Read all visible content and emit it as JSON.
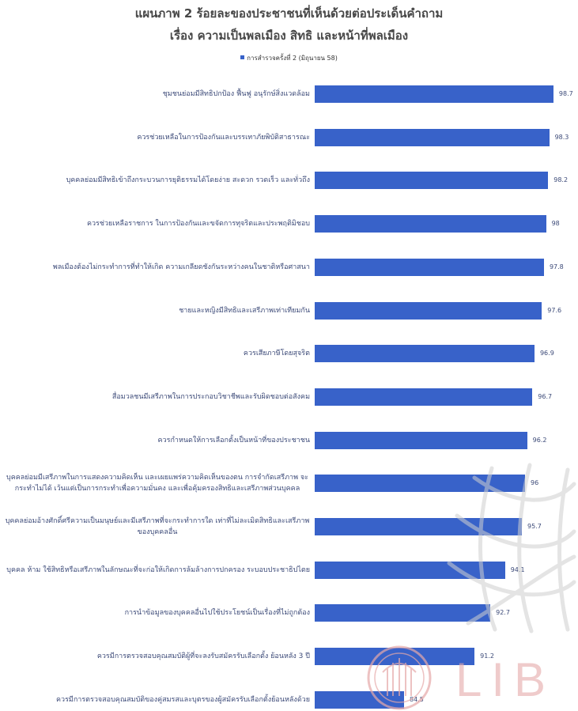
{
  "chart_data": {
    "type": "bar",
    "orientation": "horizontal",
    "title": "แผนภาพ 2 ร้อยละของประชาชนที่เห็นด้วยต่อประเด็นคำถาม",
    "subtitle": "เรื่อง ความเป็นพลเมือง สิทธิ และหน้าที่พลเมือง",
    "categories": [
      "ชุมชนย่อมมีสิทธิปกป้อง ฟื้นฟู อนุรักษ์สิ่งแวดล้อม",
      "ควรช่วยเหลือในการป้องกันและบรรเทาภัยพิบัติสาธารณะ",
      "บุคคลย่อมมีสิทธิเข้าถึงกระบวนการยุติธรรมได้โดยง่าย สะดวก รวดเร็ว และทั่วถึง",
      "ควรช่วยเหลือราชการ ในการป้องกันและขจัดการทุจริตและประพฤติมิชอบ",
      "พลเมืองต้องไม่กระทำการที่ทำให้เกิด ความเกลียดชังกันระหว่างคนในชาติหรือศาสนา",
      "ชายและหญิงมีสิทธิและเสรีภาพเท่าเทียมกัน",
      "ควรเสียภาษีโดยสุจริต",
      "สื่อมวลชนมีเสรีภาพในการประกอบวิชาชีพและรับผิดชอบต่อสังคม",
      "ควรกำหนดให้การเลือกตั้งเป็นหน้าที่ของประชาชน",
      "บุคคลย่อมมีเสรีภาพในการแสดงความคิดเห็น และเผยแพร่ความคิดเห็นของตน การจำกัดเสรีภาพ จะกระทำไม่ได้ เว้นแต่เป็นการกระทำเพื่อความมั่นคง และเพื่อคุ้มครองสิทธิและเสรีภาพส่วนบุคคล",
      "บุคคลย่อมอ้างศักดิ์ศรีความเป็นมนุษย์และมีเสรีภาพที่จะกระทำการใด เท่าที่ไม่ละเมิดสิทธิและเสรีภาพของบุคคลอื่น",
      "บุคคล ห้าม ใช้สิทธิหรือเสรีภาพในลักษณะที่จะก่อให้เกิดการล้มล้างการปกครอง ระบอบประชาธิปไตย",
      "การนำข้อมูลของบุคคลอื่นไปใช้ประโยชน์เป็นเรื่องที่ไม่ถูกต้อง",
      "ควรมีการตรวจสอบคุณสมบัติผู้ที่จะลงรับสมัครรับเลือกตั้ง ย้อนหลัง 3 ปี",
      "ควรมีการตรวจสอบคุณสมบัติของคู่สมรสและบุตรของผู้สมัครรับเลือกตั้งย้อนหลังด้วย"
    ],
    "series": [
      {
        "name": "การสำรวจครั้งที่ 2 (มิถุนายน 58)",
        "values": [
          98.7,
          98.3,
          98.2,
          98,
          97.8,
          97.6,
          96.9,
          96.7,
          96.2,
          96,
          95.7,
          94.1,
          92.7,
          91.2,
          84.5
        ]
      }
    ],
    "xlim": [
      76,
      100
    ],
    "grid": false,
    "legend_position": "top",
    "data_labels": true
  },
  "colors": {
    "bar": "#3862c9",
    "label_text": "#3c4a78",
    "title_text": "#474747",
    "watermark_seal": "#e6a9a9",
    "watermark_globe": "#cfcfcf"
  },
  "watermark": {
    "text": "LIB"
  }
}
